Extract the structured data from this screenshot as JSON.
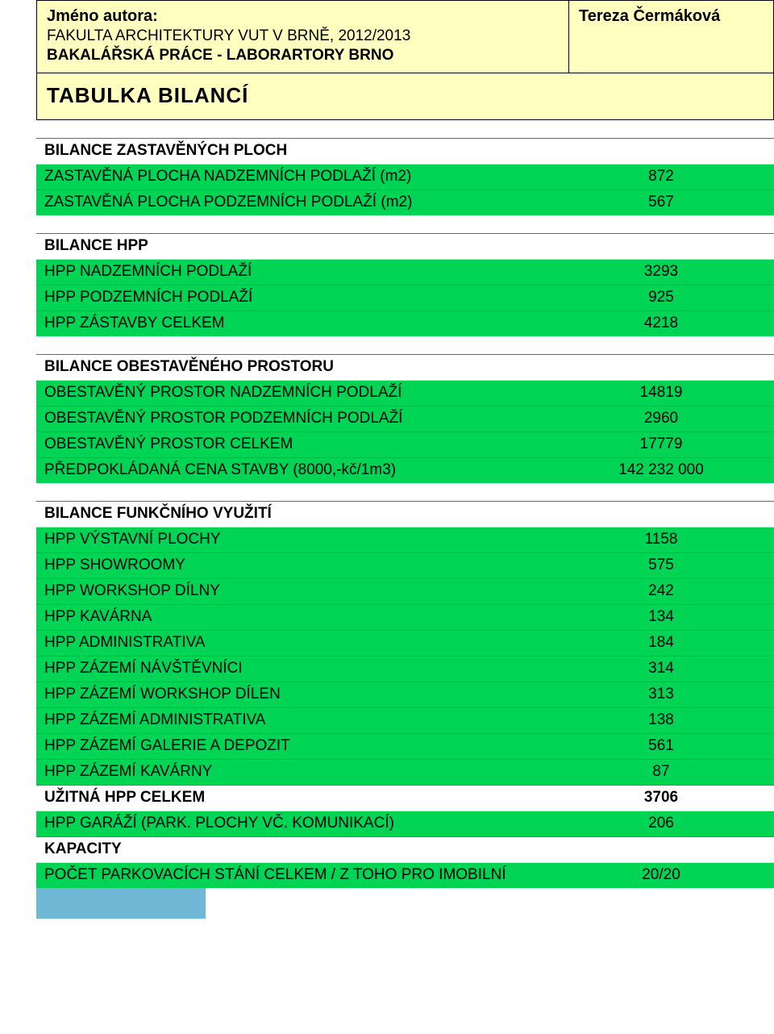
{
  "colors": {
    "yellow_bg": "#ffffbf",
    "green_bg": "#00d455",
    "white_bg": "#ffffff",
    "black": "#000000",
    "footer_blue": "#6fb8d6"
  },
  "header": {
    "author_label": "Jméno autora:",
    "author_name": "Tereza Čermáková",
    "faculty": "FAKULTA ARCHITEKTURY VUT V BRNĚ, 2012/2013",
    "thesis_prefix": "BAKALÁŘSKÁ PRÁCE - LABOR",
    "thesis_art": "ART",
    "thesis_suffix": "ORY BRNO",
    "page_title": "TABULKA  BILANCÍ"
  },
  "sections": {
    "zastavenych": {
      "title": "BILANCE ZASTAVĚNÝCH PLOCH",
      "rows": [
        {
          "label": "ZASTAVĚNÁ PLOCHA NADZEMNÍCH PODLAŽÍ (m2)",
          "value": "872"
        },
        {
          "label": "ZASTAVĚNÁ PLOCHA PODZEMNÍCH PODLAŽÍ (m2)",
          "value": "567"
        }
      ]
    },
    "hpp": {
      "title": "BILANCE HPP",
      "rows": [
        {
          "label": "HPP NADZEMNÍCH PODLAŽÍ",
          "value": "3293"
        },
        {
          "label": "HPP PODZEMNÍCH PODLAŽÍ",
          "value": "925"
        },
        {
          "label": "HPP ZÁSTAVBY CELKEM",
          "value": "4218"
        }
      ]
    },
    "obestaveneho": {
      "title": "BILANCE OBESTAVĚNÉHO PROSTORU",
      "rows": [
        {
          "label": "OBESTAVĚNÝ PROSTOR NADZEMNÍCH PODLAŽÍ",
          "value": "14819"
        },
        {
          "label": "OBESTAVĚNÝ PROSTOR PODZEMNÍCH PODLAŽÍ",
          "value": "2960"
        },
        {
          "label": "OBESTAVĚNÝ PROSTOR CELKEM",
          "value": "17779"
        },
        {
          "label": "PŘEDPOKLÁDANÁ CENA STAVBY (8000,-kč/1m3)",
          "value": "142 232 000"
        }
      ]
    },
    "funkcniho": {
      "title": "BILANCE FUNKČNÍHO VYUŽITÍ",
      "rows": [
        {
          "label": "HPP VÝSTAVNÍ PLOCHY",
          "value": "1158",
          "bold": false
        },
        {
          "label": "HPP SHOWROOMY",
          "value": "575",
          "bold": false
        },
        {
          "label": "HPP WORKSHOP DÍLNY",
          "value": "242",
          "bold": false
        },
        {
          "label": "HPP KAVÁRNA",
          "value": "134",
          "bold": false
        },
        {
          "label": "HPP ADMINISTRATIVA",
          "value": "184",
          "bold": false
        },
        {
          "label": "HPP ZÁZEMÍ NÁVŠTĚVNÍCI",
          "value": "314",
          "bold": false
        },
        {
          "label": "HPP ZÁZEMÍ WORKSHOP DÍLEN",
          "value": "313",
          "bold": false
        },
        {
          "label": "HPP ZÁZEMÍ ADMINISTRATIVA",
          "value": "138",
          "bold": false
        },
        {
          "label": "HPP ZÁZEMÍ GALERIE A DEPOZIT",
          "value": "561",
          "bold": false
        },
        {
          "label": "HPP ZÁZEMÍ KAVÁRNY",
          "value": "87",
          "bold": false
        },
        {
          "label": "UŽITNÁ HPP CELKEM",
          "value": "3706",
          "bold": true
        },
        {
          "label": "HPP GARÁŽÍ (PARK. PLOCHY VČ. KOMUNIKACÍ)",
          "value": "206",
          "bold": false
        }
      ],
      "kapacity_label": "KAPACITY",
      "kapacity_row": {
        "label": "POČET PARKOVACÍCH STÁNÍ CELKEM / Z TOHO PRO IMOBILNÍ",
        "value": "20/20"
      }
    }
  }
}
